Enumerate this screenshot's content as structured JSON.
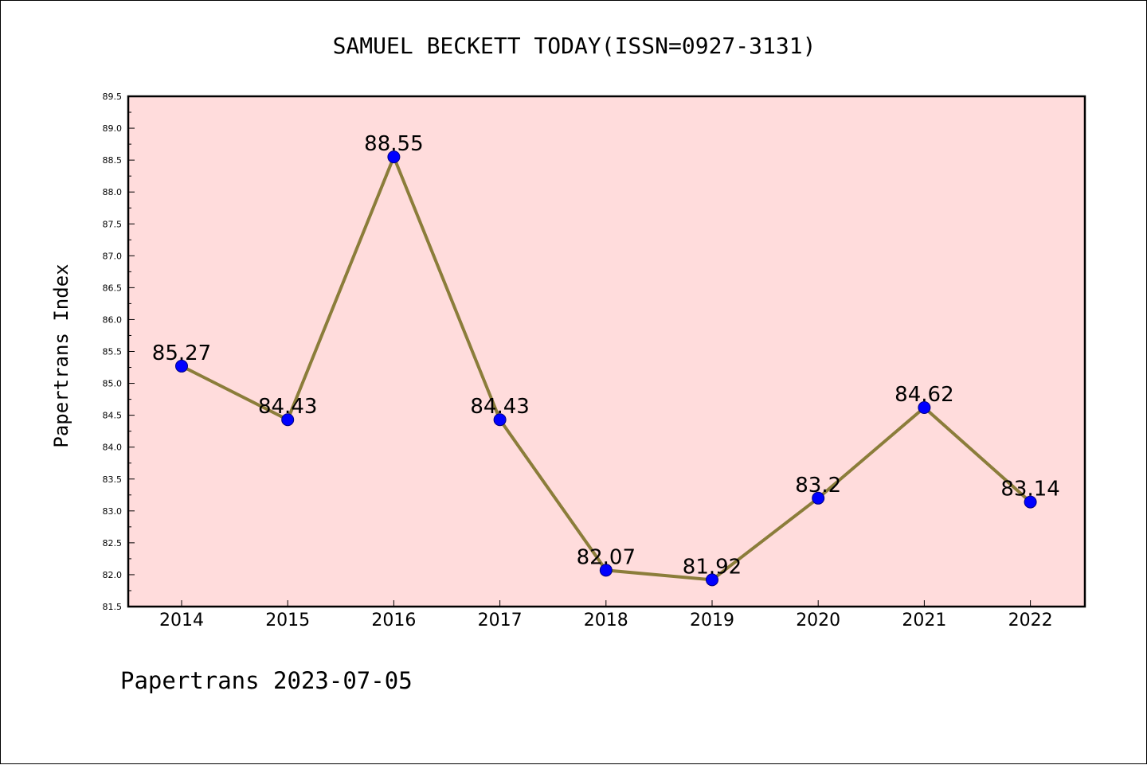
{
  "chart_data": {
    "type": "line",
    "title": "SAMUEL BECKETT TODAY(ISSN=0927-3131)",
    "xlabel": "",
    "ylabel": "Papertrans Index",
    "categories": [
      "2014",
      "2015",
      "2016",
      "2017",
      "2018",
      "2019",
      "2020",
      "2021",
      "2022"
    ],
    "series": [
      {
        "values": [
          85.27,
          84.43,
          88.55,
          84.43,
          82.07,
          81.92,
          83.2,
          84.62,
          83.14
        ],
        "labels": [
          "85.27",
          "84.43",
          "88.55",
          "84.43",
          "82.07",
          "81.92",
          "83.2",
          "84.62",
          "83.14"
        ]
      }
    ],
    "ylim": [
      81.5,
      89.5
    ],
    "yticks": [
      "81.5",
      "82.0",
      "82.5",
      "83.0",
      "83.5",
      "84.0",
      "84.5",
      "85.0",
      "85.5",
      "86.0",
      "86.5",
      "87.0",
      "87.5",
      "88.0",
      "88.5",
      "89.0",
      "89.5"
    ],
    "grid": false,
    "colors": {
      "plot_background": "#ffdcdc",
      "line": "#8b7d3a",
      "marker": "#0000ff",
      "marker_edge": "#000080"
    }
  },
  "footer": {
    "text": "Papertrans 2023-07-05"
  }
}
